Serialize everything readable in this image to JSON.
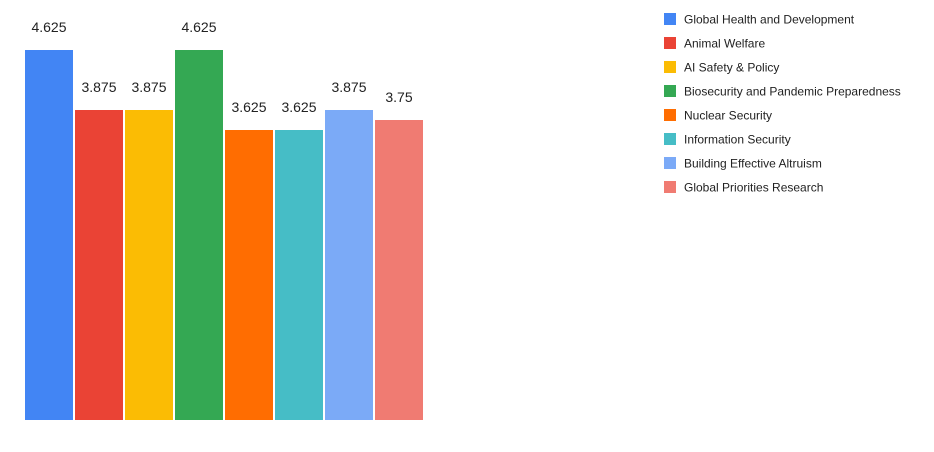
{
  "chart_data": {
    "type": "bar",
    "title": "",
    "xlabel": "",
    "ylabel": "",
    "ylim": [
      0,
      4.625
    ],
    "grid": false,
    "legend_position": "right",
    "categories": [
      "Global Health and Development",
      "Animal Welfare",
      "AI Safety & Policy",
      "Biosecurity and Pandemic Preparedness",
      "Nuclear Security",
      "Information Security",
      "Building Effective Altruism",
      "Global Priorities Research"
    ],
    "values": [
      4.625,
      3.875,
      3.875,
      4.625,
      3.625,
      3.625,
      3.875,
      3.75
    ],
    "data_labels": [
      "4.625",
      "3.875",
      "3.875",
      "4.625",
      "3.625",
      "3.625",
      "3.875",
      "3.75"
    ],
    "colors": [
      "#4285F4",
      "#EA4335",
      "#FBBC04",
      "#34A853",
      "#FF6D01",
      "#46BDC6",
      "#7BAAF7",
      "#F07B72"
    ]
  }
}
